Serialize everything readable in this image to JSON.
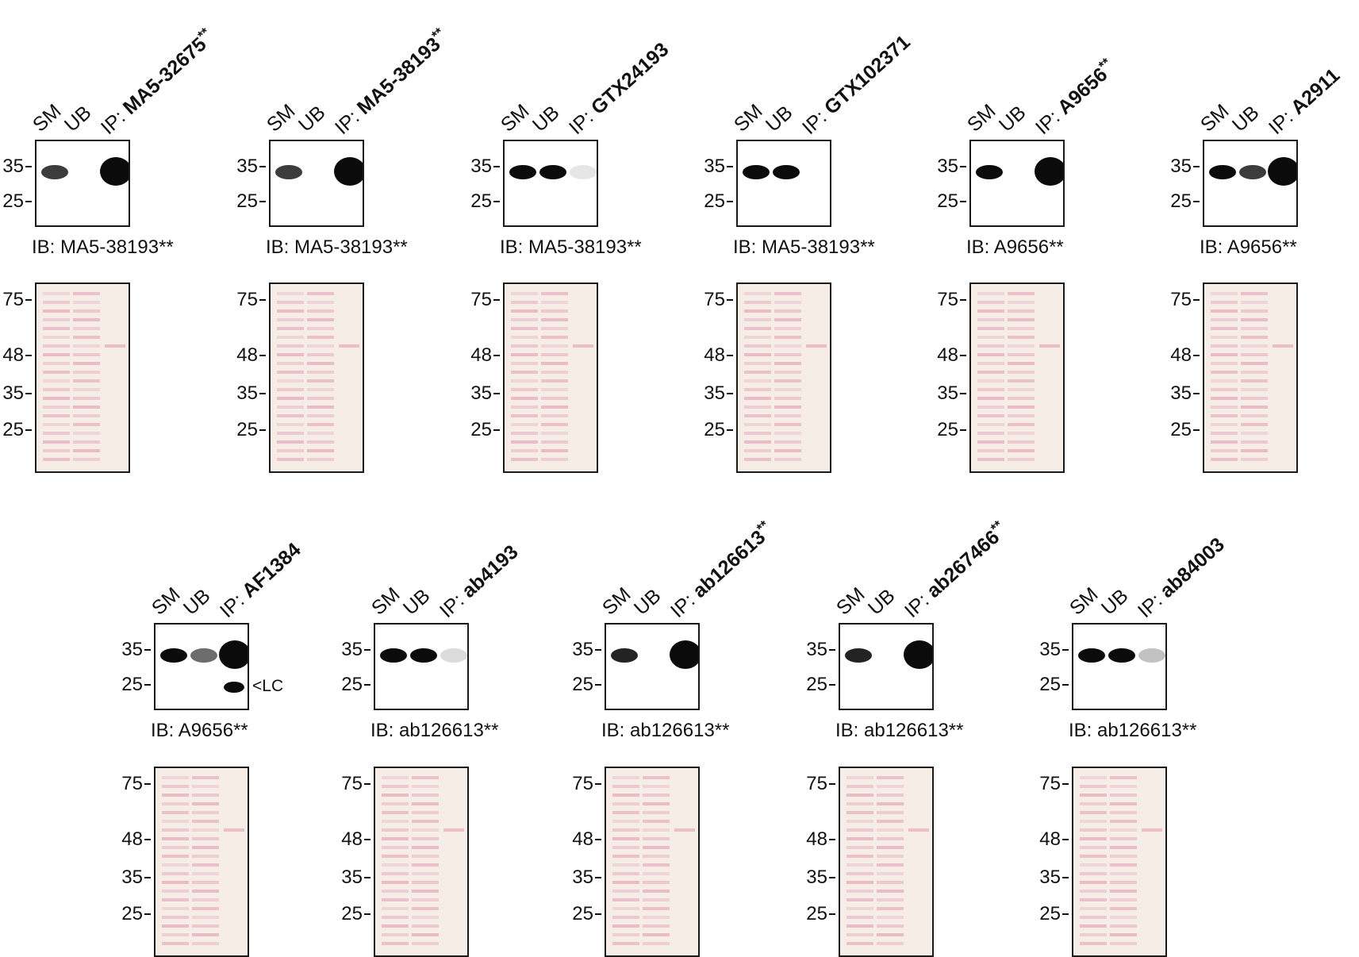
{
  "lanes": {
    "sm": "SM",
    "ub": "UB",
    "ip_prefix": "IP: "
  },
  "markers": {
    "m75": "75-",
    "m48": "48-",
    "m35": "35-",
    "m25": "25-"
  },
  "ib_prefix": "IB: ",
  "lc_label": "<LC",
  "panels": [
    {
      "ip": "MA5-32675",
      "ip_suffix": "**",
      "ib": "MA5-38193**"
    },
    {
      "ip": "MA5-38193",
      "ip_suffix": "**",
      "ib": "MA5-38193**"
    },
    {
      "ip": "GTX24193",
      "ip_suffix": "",
      "ib": "MA5-38193**"
    },
    {
      "ip": "GTX102371",
      "ip_suffix": "",
      "ib": "MA5-38193**"
    },
    {
      "ip": "A9656",
      "ip_suffix": "**",
      "ib": "A9656**"
    },
    {
      "ip": "A2911",
      "ip_suffix": "",
      "ib": "A9656**"
    },
    {
      "ip": "AF1384",
      "ip_suffix": "",
      "ib": "A9656**"
    },
    {
      "ip": "ab4193",
      "ip_suffix": "",
      "ib": "ab126613**"
    },
    {
      "ip": "ab126613",
      "ip_suffix": "**",
      "ib": "ab126613**"
    },
    {
      "ip": "ab267466",
      "ip_suffix": "**",
      "ib": "ab126613**"
    },
    {
      "ip": "ab84003",
      "ip_suffix": "",
      "ib": "ab126613**"
    }
  ],
  "colors": {
    "band": "#0b0b0b",
    "ponceau_bg": "#f5ede6",
    "ponceau_band": "#e8a9bd"
  }
}
